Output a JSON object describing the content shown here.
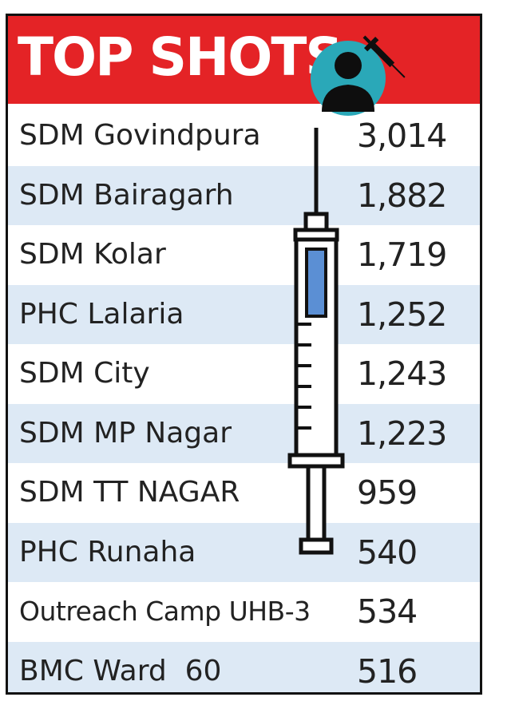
{
  "title": "TOP SHOTS",
  "colors": {
    "header": "#e42326",
    "stripe": "#dde9f5",
    "icon_circle": "#2aa8b8",
    "syringe_fill": "#5b8fd4",
    "text": "#222222"
  },
  "icons": [
    "person-icon",
    "syringe-icon"
  ],
  "chart_data": {
    "type": "table",
    "title": "TOP SHOTS",
    "columns": [],
    "rows": [
      {
        "name": "SDM Govindpura",
        "value": "3,014"
      },
      {
        "name": "SDM Bairagarh",
        "value": "1,882"
      },
      {
        "name": "SDM Kolar",
        "value": "1,719"
      },
      {
        "name": "PHC Lalaria",
        "value": "1,252"
      },
      {
        "name": "SDM City",
        "value": "1,243"
      },
      {
        "name": "SDM MP Nagar",
        "value": "1,223"
      },
      {
        "name": "SDM TT NAGAR",
        "value": "959"
      },
      {
        "name": "PHC Runaha",
        "value": "540"
      },
      {
        "name": "Outreach Camp UHB-3",
        "value": "534"
      },
      {
        "name": "BMC Ward  60",
        "value": "516"
      }
    ]
  }
}
